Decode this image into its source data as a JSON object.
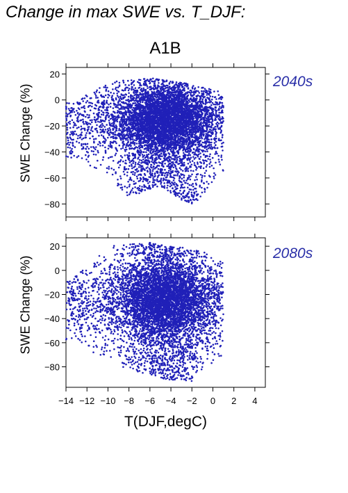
{
  "header": {
    "title": "Change in max SWE vs. T_DJF:",
    "scenario": "A1B"
  },
  "colors": {
    "points": "#2020b8",
    "period_label": "#2a2fa8",
    "frame": "#000000"
  },
  "chart_data": [
    {
      "type": "scatter",
      "period": "2040s",
      "ylabel": "SWE Change (%)",
      "xlim": [
        -14,
        5
      ],
      "ylim": [
        -90,
        25
      ],
      "xticks": [
        -14,
        -12,
        -10,
        -8,
        -6,
        -4,
        -2,
        0,
        2,
        4
      ],
      "yticks": [
        20,
        0,
        -20,
        -40,
        -60,
        -80
      ],
      "ytick_labels": [
        "20",
        "0",
        "−20",
        "−40",
        "−60",
        "−80"
      ],
      "point_cloud": {
        "n_points": 6500,
        "x_range": [
          -14,
          1
        ],
        "y_range": [
          -82,
          17
        ],
        "dense_core": {
          "x_center": -4.5,
          "x_spread": 2.3,
          "y_center": -15,
          "y_spread": 22
        },
        "upper_edge_by_x": [
          [
            -14,
            -2
          ],
          [
            -12,
            5
          ],
          [
            -10,
            14
          ],
          [
            -6,
            17
          ],
          [
            -2,
            12
          ],
          [
            1,
            6
          ]
        ],
        "lower_edge_by_x": [
          [
            -13,
            -45
          ],
          [
            -11,
            -55
          ],
          [
            -8,
            -75
          ],
          [
            -5,
            -66
          ],
          [
            -2,
            -82
          ],
          [
            1,
            -55
          ]
        ]
      }
    },
    {
      "type": "scatter",
      "period": "2080s",
      "ylabel": "SWE Change (%)",
      "xlabel": "T(DJF,degC)",
      "xlim": [
        -14,
        5
      ],
      "ylim": [
        -97,
        27
      ],
      "xticks": [
        -14,
        -12,
        -10,
        -8,
        -6,
        -4,
        -2,
        0,
        2,
        4
      ],
      "xtick_labels": [
        "−14",
        "−12",
        "−10",
        "−8",
        "−6",
        "−4",
        "−2",
        "0",
        "2",
        "4"
      ],
      "yticks": [
        20,
        0,
        -20,
        -40,
        -60,
        -80
      ],
      "ytick_labels": [
        "20",
        "0",
        "−20",
        "−40",
        "−60",
        "−80"
      ],
      "point_cloud": {
        "n_points": 6500,
        "x_range": [
          -14,
          1
        ],
        "y_range": [
          -92,
          23
        ],
        "dense_core": {
          "x_center": -4.5,
          "x_spread": 2.3,
          "y_center": -25,
          "y_spread": 28
        },
        "upper_edge_by_x": [
          [
            -14,
            -10
          ],
          [
            -12,
            3
          ],
          [
            -10,
            20
          ],
          [
            -6,
            23
          ],
          [
            -2,
            18
          ],
          [
            1,
            10
          ]
        ],
        "lower_edge_by_x": [
          [
            -13,
            -60
          ],
          [
            -11,
            -72
          ],
          [
            -8,
            -82
          ],
          [
            -5,
            -90
          ],
          [
            -2,
            -92
          ],
          [
            1,
            -70
          ]
        ]
      }
    }
  ]
}
